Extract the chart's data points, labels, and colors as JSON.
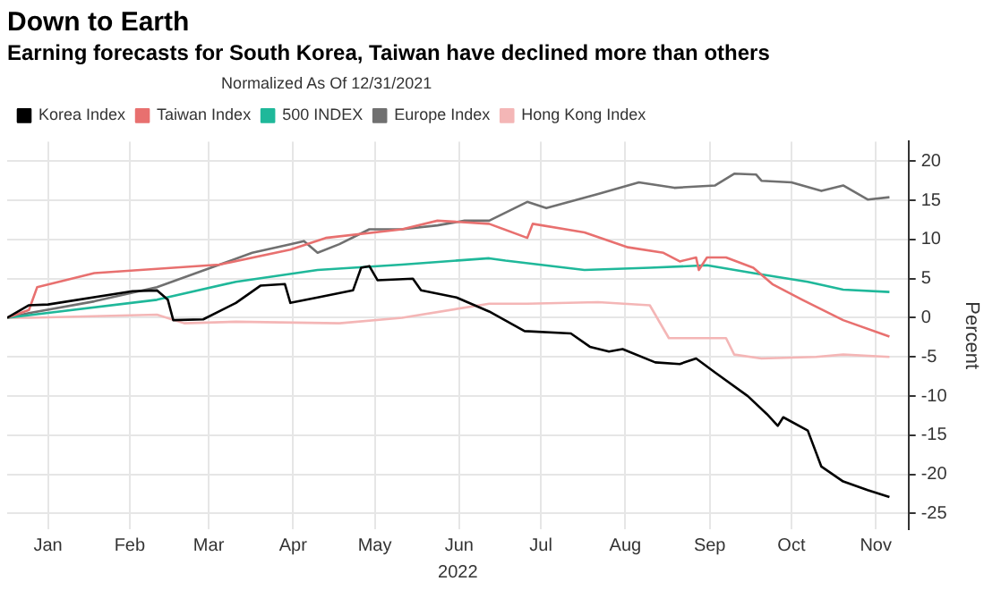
{
  "chart_data": {
    "type": "line",
    "title": "Down to Earth",
    "subtitle": "Earning forecasts for South Korea, Taiwan have declined more than others",
    "xlabel": "2022",
    "ylabel": "Percent",
    "legend_title": "Normalized As Of 12/31/2021",
    "legend": "top",
    "grid": true,
    "marker": "none",
    "line_style": "solid",
    "xlim": [
      "2022-01-01",
      "2022-11-28"
    ],
    "xticks": [
      {
        "value": "2022-01-16",
        "label": "Jan"
      },
      {
        "value": "2022-02-15",
        "label": "Feb"
      },
      {
        "value": "2022-03-16",
        "label": "Mar"
      },
      {
        "value": "2022-04-16",
        "label": "Apr"
      },
      {
        "value": "2022-05-16",
        "label": "May"
      },
      {
        "value": "2022-06-16",
        "label": "Jun"
      },
      {
        "value": "2022-07-16",
        "label": "Jul"
      },
      {
        "value": "2022-08-16",
        "label": "Aug"
      },
      {
        "value": "2022-09-16",
        "label": "Sep"
      },
      {
        "value": "2022-10-16",
        "label": "Oct"
      },
      {
        "value": "2022-11-16",
        "label": "Nov"
      }
    ],
    "ylim": [
      -27,
      22.5
    ],
    "yticks": [
      -25,
      -20,
      -15,
      -10,
      -5,
      0,
      5,
      10,
      15,
      20
    ],
    "series": [
      {
        "name": "Korea Index",
        "color": "#000000",
        "x": [
          "2022-01-01",
          "2022-01-09",
          "2022-01-16",
          "2022-02-16",
          "2022-02-25",
          "2022-03-01",
          "2022-03-03",
          "2022-03-14",
          "2022-03-26",
          "2022-04-04",
          "2022-04-13",
          "2022-04-15",
          "2022-04-25",
          "2022-05-08",
          "2022-05-11",
          "2022-05-14",
          "2022-05-17",
          "2022-05-30",
          "2022-06-02",
          "2022-06-15",
          "2022-06-27",
          "2022-07-10",
          "2022-07-27",
          "2022-08-03",
          "2022-08-10",
          "2022-08-15",
          "2022-08-27",
          "2022-09-05",
          "2022-09-11",
          "2022-09-18",
          "2022-09-30",
          "2022-10-07",
          "2022-10-11",
          "2022-10-13",
          "2022-10-22",
          "2022-10-27",
          "2022-11-04",
          "2022-11-13",
          "2022-11-21"
        ],
        "values": [
          0,
          1.6,
          1.7,
          3.4,
          3.5,
          2.3,
          -0.3,
          -0.2,
          1.9,
          4.1,
          4.3,
          1.9,
          2.6,
          3.5,
          6.4,
          6.6,
          4.8,
          5.0,
          3.5,
          2.6,
          0.8,
          -1.7,
          -2.0,
          -3.7,
          -4.3,
          -4.0,
          -5.7,
          -5.9,
          -5.2,
          -7.0,
          -10.0,
          -12.3,
          -13.8,
          -12.7,
          -14.4,
          -19.0,
          -20.9,
          -22.0,
          -22.9
        ]
      },
      {
        "name": "Taiwan Index",
        "color": "#e8706f",
        "x": [
          "2022-01-01",
          "2022-01-09",
          "2022-01-12",
          "2022-02-02",
          "2022-03-20",
          "2022-04-15",
          "2022-04-28",
          "2022-05-26",
          "2022-06-08",
          "2022-06-27",
          "2022-07-11",
          "2022-07-13",
          "2022-08-01",
          "2022-08-17",
          "2022-08-30",
          "2022-09-05",
          "2022-09-11",
          "2022-09-12",
          "2022-09-15",
          "2022-09-22",
          "2022-10-02",
          "2022-10-09",
          "2022-10-20",
          "2022-11-04",
          "2022-11-21"
        ],
        "values": [
          0,
          1.0,
          3.9,
          5.7,
          6.8,
          8.7,
          10.2,
          11.3,
          12.4,
          12.0,
          10.2,
          12.0,
          10.9,
          9.0,
          8.3,
          7.2,
          7.7,
          6.1,
          7.7,
          7.7,
          6.4,
          4.3,
          2.3,
          -0.3,
          -2.4
        ]
      },
      {
        "name": "500 INDEX",
        "color": "#1fb89a",
        "x": [
          "2022-01-01",
          "2022-02-25",
          "2022-03-26",
          "2022-04-25",
          "2022-05-26",
          "2022-06-27",
          "2022-07-03",
          "2022-08-01",
          "2022-08-25",
          "2022-09-15",
          "2022-10-02",
          "2022-10-22",
          "2022-11-04",
          "2022-11-21"
        ],
        "values": [
          0,
          2.3,
          4.6,
          6.1,
          6.8,
          7.6,
          7.3,
          6.1,
          6.4,
          6.7,
          5.7,
          4.6,
          3.6,
          3.3
        ]
      },
      {
        "name": "Europe Index",
        "color": "#707070",
        "x": [
          "2022-01-01",
          "2022-01-09",
          "2022-02-02",
          "2022-02-25",
          "2022-03-20",
          "2022-04-01",
          "2022-04-15",
          "2022-04-20",
          "2022-04-25",
          "2022-05-03",
          "2022-05-14",
          "2022-05-26",
          "2022-06-08",
          "2022-06-18",
          "2022-06-27",
          "2022-07-11",
          "2022-07-18",
          "2022-08-06",
          "2022-08-21",
          "2022-09-03",
          "2022-09-18",
          "2022-09-25",
          "2022-10-03",
          "2022-10-05",
          "2022-10-16",
          "2022-10-27",
          "2022-11-04",
          "2022-11-13",
          "2022-11-21"
        ],
        "values": [
          0,
          0.6,
          2.1,
          3.9,
          6.8,
          8.3,
          9.4,
          9.8,
          8.3,
          9.4,
          11.3,
          11.3,
          11.8,
          12.4,
          12.4,
          14.8,
          14.0,
          15.8,
          17.3,
          16.6,
          16.9,
          18.4,
          18.3,
          17.5,
          17.3,
          16.2,
          16.9,
          15.1,
          15.4
        ]
      },
      {
        "name": "Hong Kong Index",
        "color": "#f4b6b6",
        "x": [
          "2022-01-01",
          "2022-01-09",
          "2022-02-25",
          "2022-03-07",
          "2022-03-26",
          "2022-05-03",
          "2022-05-26",
          "2022-06-27",
          "2022-07-11",
          "2022-08-06",
          "2022-08-25",
          "2022-08-27",
          "2022-09-01",
          "2022-09-22",
          "2022-09-25",
          "2022-10-05",
          "2022-10-25",
          "2022-11-04",
          "2022-11-21"
        ],
        "values": [
          0,
          0,
          0.4,
          -0.7,
          -0.5,
          -0.7,
          0,
          1.8,
          1.8,
          2.0,
          1.6,
          0.4,
          -2.6,
          -2.6,
          -4.7,
          -5.2,
          -5.0,
          -4.7,
          -5.0
        ]
      }
    ]
  }
}
